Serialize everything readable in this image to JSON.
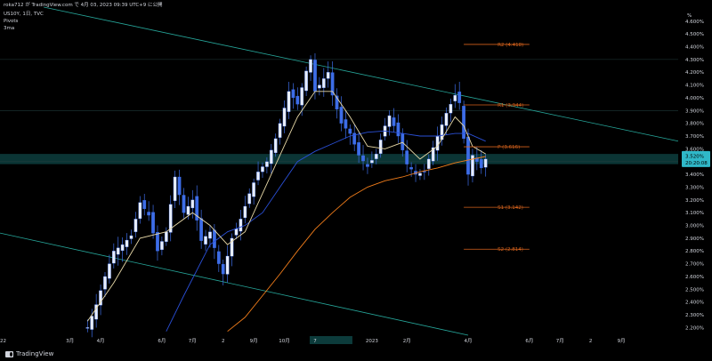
{
  "header": {
    "attribution": "roka712 が TradingView.com で 4月 03, 2023 09:39 UTC+9 に公開",
    "symbol_line": "US10Y, 1日, TVC",
    "indicator_1": "Pivots",
    "indicator_2": "3ma"
  },
  "brand": {
    "name": "TradingView",
    "logo_icon": "tradingview-logo-icon"
  },
  "colors": {
    "background": "#000000",
    "candle": "#3d6de8",
    "ma_short": "#e8d9a8",
    "ma_mid": "#2a4fd6",
    "ma_long": "#f07c1a",
    "pivot_line": "#d5621c",
    "trend_channel": "#26a69a",
    "price_band": "#0c3b3b",
    "price_tag": "#2fb8c8"
  },
  "chart_data": {
    "type": "candlestick",
    "unit_label": "%",
    "y_ticks": [
      "4.600%",
      "4.500%",
      "4.400%",
      "4.300%",
      "4.200%",
      "4.100%",
      "4.000%",
      "3.900%",
      "3.800%",
      "3.700%",
      "3.600%",
      "3.500%",
      "3.400%",
      "3.300%",
      "3.200%",
      "3.100%",
      "3.000%",
      "2.900%",
      "2.800%",
      "2.700%",
      "2.600%",
      "2.500%",
      "2.400%",
      "2.300%",
      "2.200%"
    ],
    "ylim": [
      2.14,
      4.71
    ],
    "x_ticks": [
      "2022",
      "3月",
      "4月",
      "6月",
      "7月",
      "2",
      "9月",
      "10月",
      "7",
      "2023",
      "2月",
      "4月",
      "6月",
      "7月",
      "2",
      "9月"
    ],
    "x_ticks_index": [
      0,
      16,
      23,
      37,
      44,
      51,
      58,
      65,
      72,
      85,
      93,
      107,
      121,
      128,
      135,
      142
    ],
    "x_total": 155,
    "highlighted_x_tick": "7",
    "current_price": {
      "value": "3.520%",
      "countdown": "20:20:08",
      "y": 3.52
    },
    "pivots": [
      {
        "label": "R2 (4.418)",
        "value": 4.418
      },
      {
        "label": "R1 (3.944)",
        "value": 3.944
      },
      {
        "label": "P (3.616)",
        "value": 3.616
      },
      {
        "label": "S1 (3.142)",
        "value": 3.142
      },
      {
        "label": "S2 (2.814)",
        "value": 2.814
      }
    ],
    "pivot_x_range": [
      106,
      121
    ],
    "close_anchors": [
      [
        20,
        2.2
      ],
      [
        22,
        2.38
      ],
      [
        24,
        2.6
      ],
      [
        26,
        2.8
      ],
      [
        28,
        2.85
      ],
      [
        30,
        2.92
      ],
      [
        32,
        3.18
      ],
      [
        34,
        3.08
      ],
      [
        36,
        2.8
      ],
      [
        38,
        2.95
      ],
      [
        40,
        3.38
      ],
      [
        42,
        3.1
      ],
      [
        44,
        3.2
      ],
      [
        46,
        2.88
      ],
      [
        48,
        2.95
      ],
      [
        50,
        2.7
      ],
      [
        51,
        2.62
      ],
      [
        53,
        2.9
      ],
      [
        55,
        3.05
      ],
      [
        57,
        3.25
      ],
      [
        59,
        3.42
      ],
      [
        61,
        3.5
      ],
      [
        63,
        3.68
      ],
      [
        65,
        3.92
      ],
      [
        66,
        4.05
      ],
      [
        68,
        3.95
      ],
      [
        70,
        4.21
      ],
      [
        71,
        4.3
      ],
      [
        72,
        4.05
      ],
      [
        74,
        4.15
      ],
      [
        75,
        4.2
      ],
      [
        76,
        4.02
      ],
      [
        78,
        3.8
      ],
      [
        80,
        3.72
      ],
      [
        82,
        3.55
      ],
      [
        84,
        3.46
      ],
      [
        86,
        3.56
      ],
      [
        88,
        3.78
      ],
      [
        89,
        3.86
      ],
      [
        91,
        3.7
      ],
      [
        93,
        3.48
      ],
      [
        95,
        3.4
      ],
      [
        97,
        3.42
      ],
      [
        98,
        3.52
      ],
      [
        100,
        3.7
      ],
      [
        102,
        3.88
      ],
      [
        104,
        4.02
      ],
      [
        105,
        3.96
      ],
      [
        106,
        3.68
      ],
      [
        107,
        3.4
      ],
      [
        108,
        3.55
      ],
      [
        110,
        3.45
      ],
      [
        111,
        3.52
      ]
    ],
    "ma_short": [
      [
        20,
        2.25
      ],
      [
        26,
        2.55
      ],
      [
        32,
        2.9
      ],
      [
        38,
        2.95
      ],
      [
        44,
        3.1
      ],
      [
        48,
        3.0
      ],
      [
        52,
        2.85
      ],
      [
        56,
        2.95
      ],
      [
        60,
        3.25
      ],
      [
        64,
        3.55
      ],
      [
        68,
        3.85
      ],
      [
        72,
        4.05
      ],
      [
        76,
        4.05
      ],
      [
        80,
        3.85
      ],
      [
        84,
        3.62
      ],
      [
        88,
        3.6
      ],
      [
        92,
        3.65
      ],
      [
        96,
        3.52
      ],
      [
        100,
        3.62
      ],
      [
        104,
        3.85
      ],
      [
        106,
        3.78
      ],
      [
        108,
        3.62
      ],
      [
        111,
        3.56
      ]
    ],
    "ma_mid": [
      [
        38,
        2.17
      ],
      [
        42,
        2.45
      ],
      [
        48,
        2.85
      ],
      [
        52,
        2.95
      ],
      [
        56,
        3.0
      ],
      [
        60,
        3.1
      ],
      [
        64,
        3.3
      ],
      [
        68,
        3.5
      ],
      [
        72,
        3.58
      ],
      [
        76,
        3.64
      ],
      [
        80,
        3.7
      ],
      [
        84,
        3.73
      ],
      [
        88,
        3.74
      ],
      [
        92,
        3.72
      ],
      [
        96,
        3.7
      ],
      [
        100,
        3.7
      ],
      [
        104,
        3.72
      ],
      [
        107,
        3.72
      ],
      [
        111,
        3.66
      ]
    ],
    "ma_long": [
      [
        52,
        2.17
      ],
      [
        56,
        2.28
      ],
      [
        60,
        2.45
      ],
      [
        64,
        2.62
      ],
      [
        68,
        2.8
      ],
      [
        72,
        2.97
      ],
      [
        76,
        3.1
      ],
      [
        80,
        3.22
      ],
      [
        84,
        3.3
      ],
      [
        88,
        3.35
      ],
      [
        92,
        3.38
      ],
      [
        96,
        3.42
      ],
      [
        100,
        3.45
      ],
      [
        104,
        3.49
      ],
      [
        108,
        3.52
      ],
      [
        111,
        3.54
      ]
    ],
    "upper_channel": [
      [
        10,
        4.71
      ],
      [
        155,
        3.66
      ]
    ],
    "lower_channel": [
      [
        0,
        2.94
      ],
      [
        107,
        2.14
      ]
    ],
    "price_band": [
      3.48,
      3.56
    ]
  }
}
